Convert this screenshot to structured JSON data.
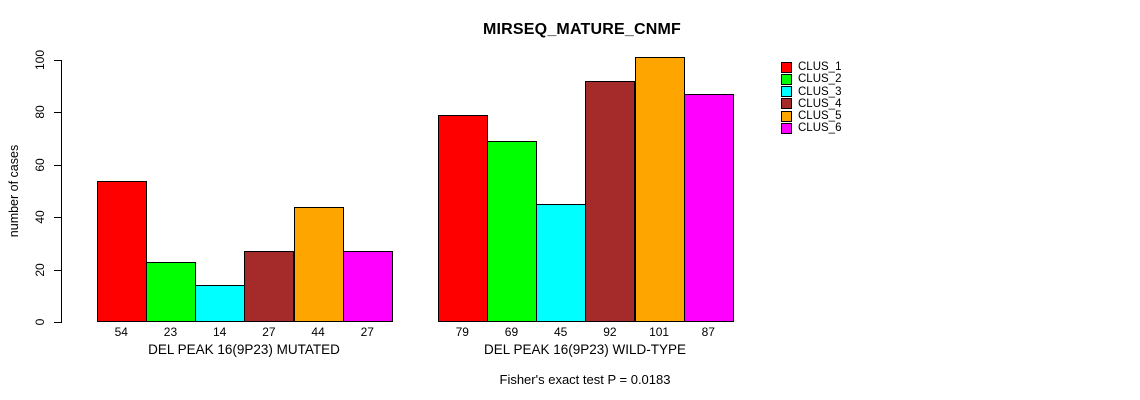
{
  "chart_data": {
    "type": "bar",
    "title": "MIRSEQ_MATURE_CNMF",
    "ylabel": "number of cases",
    "xlabel": "",
    "ylim": [
      0,
      100
    ],
    "yticks": [
      0,
      20,
      40,
      60,
      80,
      100
    ],
    "grid": false,
    "legend_position": "top-right",
    "categories": [
      "CLUS_1",
      "CLUS_2",
      "CLUS_3",
      "CLUS_4",
      "CLUS_5",
      "CLUS_6"
    ],
    "legend": [
      {
        "name": "CLUS_1",
        "color": "#ff0000"
      },
      {
        "name": "CLUS_2",
        "color": "#00ff00"
      },
      {
        "name": "CLUS_3",
        "color": "#00ffff"
      },
      {
        "name": "CLUS_4",
        "color": "#a52a2a"
      },
      {
        "name": "CLUS_5",
        "color": "#ffa500"
      },
      {
        "name": "CLUS_6",
        "color": "#ff00ff"
      }
    ],
    "groups": [
      {
        "label": "DEL PEAK 16(9P23) MUTATED",
        "values": [
          54,
          23,
          14,
          27,
          44,
          27
        ]
      },
      {
        "label": "DEL PEAK 16(9P23) WILD-TYPE",
        "values": [
          79,
          69,
          45,
          92,
          101,
          87
        ]
      }
    ],
    "footnote": "Fisher's exact test P = 0.0183",
    "axis_color": "#000000",
    "bar_border_color": "#000000",
    "background_color": "#ffffff"
  }
}
